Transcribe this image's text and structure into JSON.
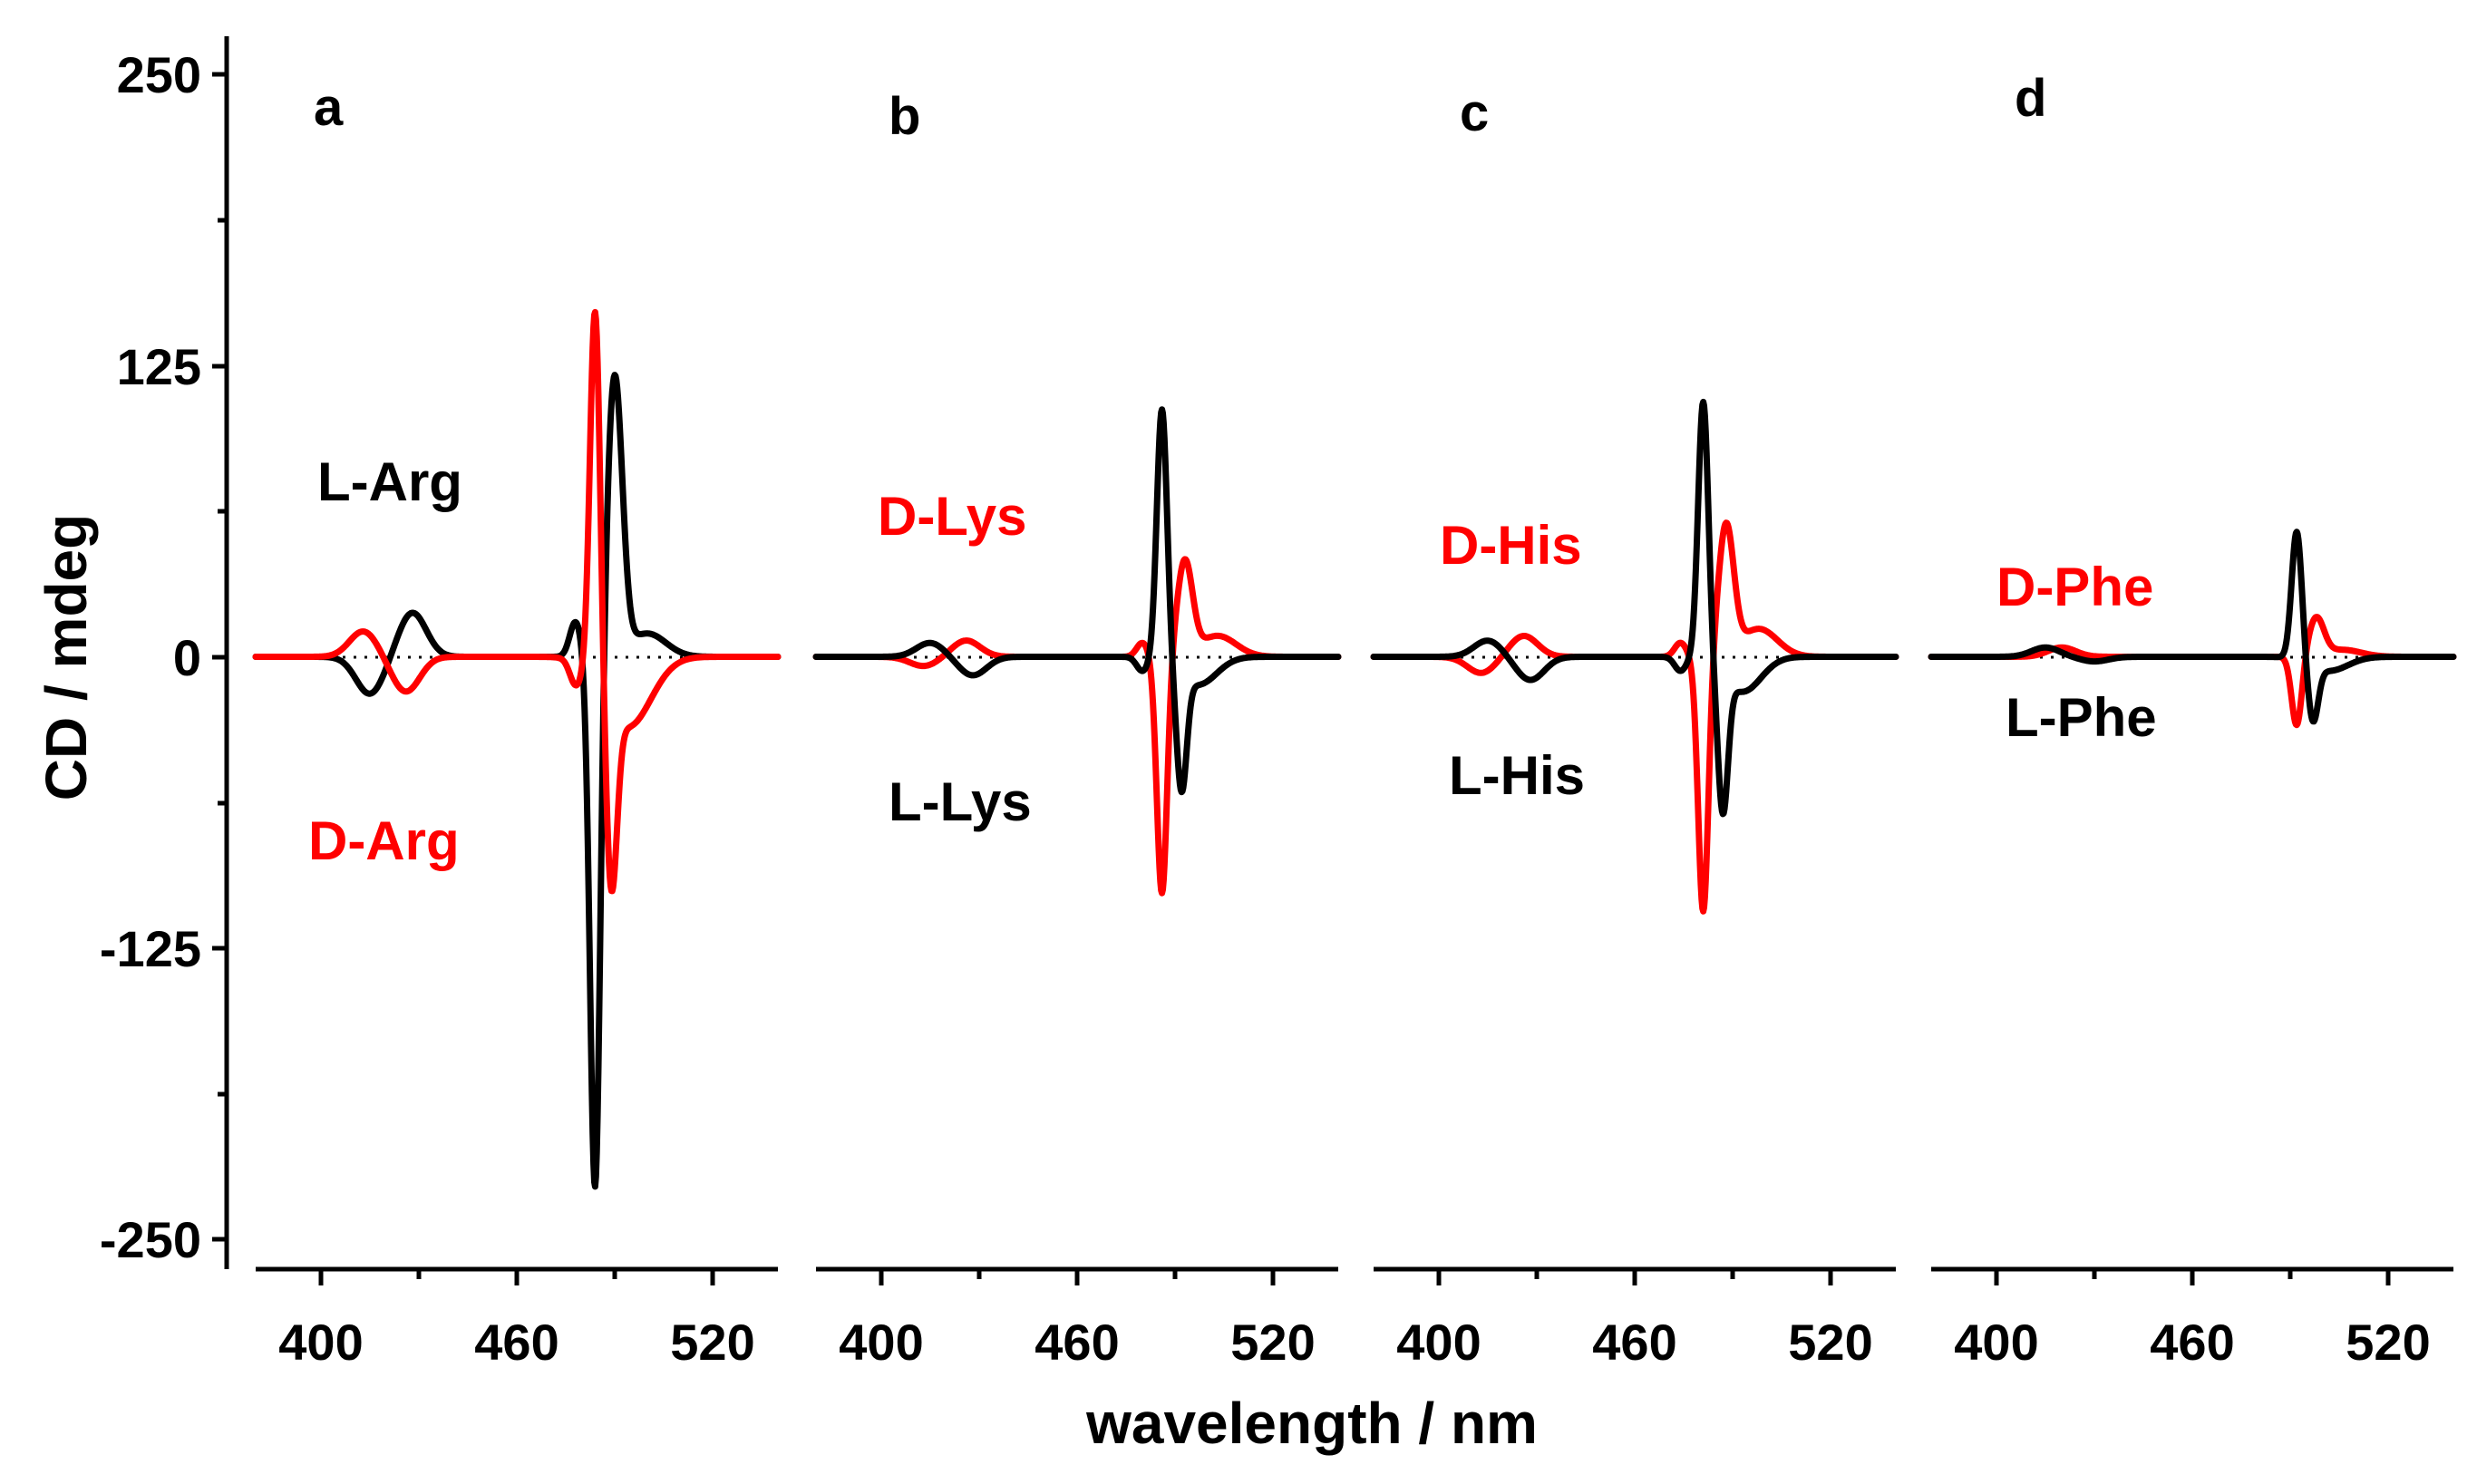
{
  "chart_data": {
    "type": "line",
    "ylabel": "CD / mdeg",
    "xlabel": "wavelength / nm",
    "ylim": [
      -250,
      250
    ],
    "yticks": [
      "250",
      "125",
      "0",
      "-125",
      "-250"
    ],
    "xlim": [
      380,
      540
    ],
    "xticks": [
      "400",
      "460",
      "520"
    ],
    "colors": {
      "L": "#000000",
      "D": "#ff0000"
    },
    "panels": [
      {
        "letter": "a",
        "series": [
          {
            "name": "L-Arg",
            "color": "#000000",
            "peaks": [
              [
                415,
                -16,
                6
              ],
              [
                428,
                19,
                6
              ],
              [
                478,
                15,
                2.5
              ],
              [
                484,
                -232,
                2.2
              ],
              [
                490,
                119,
                3.3
              ],
              [
                500,
                10,
                8
              ]
            ]
          },
          {
            "name": "D-Arg",
            "color": "#ff0000",
            "peaks": [
              [
                413,
                11,
                6
              ],
              [
                426,
                -15,
                6
              ],
              [
                478,
                -10,
                2.5
              ],
              [
                484,
                160,
                2.2
              ],
              [
                489,
                -78,
                2.4
              ],
              [
                494,
                -30,
                10
              ]
            ]
          }
        ]
      },
      {
        "letter": "b",
        "series": [
          {
            "name": "D-Lys",
            "color": "#ff0000",
            "peaks": [
              [
                413,
                -4,
                6
              ],
              [
                426,
                7,
                6
              ],
              [
                480,
                6,
                2.5
              ],
              [
                486,
                -102,
                2.2
              ],
              [
                493,
                40,
                3.3
              ],
              [
                503,
                9,
                8
              ]
            ]
          },
          {
            "name": "L-Lys",
            "color": "#000000",
            "peaks": [
              [
                415,
                6,
                6
              ],
              [
                428,
                -8,
                6
              ],
              [
                480,
                -6,
                2.5
              ],
              [
                486,
                108,
                2.2
              ],
              [
                492,
                -50,
                2.2
              ],
              [
                497,
                -12,
                8
              ]
            ]
          }
        ]
      },
      {
        "letter": "c",
        "series": [
          {
            "name": "D-His",
            "color": "#ff0000",
            "peaks": [
              [
                413,
                -7,
                6
              ],
              [
                426,
                9,
                6
              ],
              [
                474,
                6,
                2.5
              ],
              [
                481,
                -110,
                2.2
              ],
              [
                488,
                55,
                3.3
              ],
              [
                498,
                12,
                8
              ]
            ]
          },
          {
            "name": "L-His",
            "color": "#000000",
            "peaks": [
              [
                415,
                7,
                6
              ],
              [
                428,
                -10,
                6
              ],
              [
                474,
                -6,
                2.5
              ],
              [
                481,
                111,
                2.2
              ],
              [
                487,
                -59,
                2.2
              ],
              [
                493,
                -15,
                8
              ]
            ]
          }
        ]
      },
      {
        "letter": "d",
        "series": [
          {
            "name": "D-Phe",
            "color": "#ff0000",
            "peaks": [
              [
                420,
                4,
                6
              ],
              [
                492,
                -30,
                2.2
              ],
              [
                498,
                16,
                3.3
              ],
              [
                506,
                3,
                8
              ]
            ]
          },
          {
            "name": "L-Phe",
            "color": "#000000",
            "peaks": [
              [
                415,
                4,
                6
              ],
              [
                430,
                -2,
                6
              ],
              [
                492,
                55,
                2.2
              ],
              [
                497,
                -24,
                2.2
              ],
              [
                502,
                -6,
                8
              ]
            ]
          }
        ]
      }
    ]
  }
}
